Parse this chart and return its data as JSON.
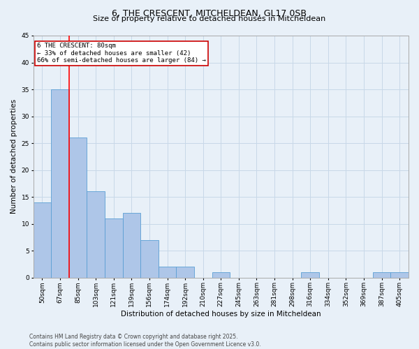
{
  "title1": "6, THE CRESCENT, MITCHELDEAN, GL17 0SB",
  "title2": "Size of property relative to detached houses in Mitcheldean",
  "xlabel": "Distribution of detached houses by size in Mitcheldean",
  "ylabel": "Number of detached properties",
  "categories": [
    "50sqm",
    "67sqm",
    "85sqm",
    "103sqm",
    "121sqm",
    "139sqm",
    "156sqm",
    "174sqm",
    "192sqm",
    "210sqm",
    "227sqm",
    "245sqm",
    "263sqm",
    "281sqm",
    "298sqm",
    "316sqm",
    "334sqm",
    "352sqm",
    "369sqm",
    "387sqm",
    "405sqm"
  ],
  "values": [
    14,
    35,
    26,
    16,
    11,
    12,
    7,
    2,
    2,
    0,
    1,
    0,
    0,
    0,
    0,
    1,
    0,
    0,
    0,
    1,
    1
  ],
  "bar_color": "#aec6e8",
  "bar_edge_color": "#5a9fd4",
  "grid_color": "#c8d8e8",
  "background_color": "#e8f0f8",
  "red_line_x": 1.5,
  "annotation_text": "6 THE CRESCENT: 80sqm\n← 33% of detached houses are smaller (42)\n66% of semi-detached houses are larger (84) →",
  "annotation_box_color": "#ffffff",
  "annotation_box_edge": "#cc0000",
  "ylim": [
    0,
    45
  ],
  "yticks": [
    0,
    5,
    10,
    15,
    20,
    25,
    30,
    35,
    40,
    45
  ],
  "footer": "Contains HM Land Registry data © Crown copyright and database right 2025.\nContains public sector information licensed under the Open Government Licence v3.0.",
  "title1_fontsize": 9,
  "title2_fontsize": 8,
  "axis_label_fontsize": 7.5,
  "tick_fontsize": 6.5,
  "annotation_fontsize": 6.5,
  "footer_fontsize": 5.5
}
